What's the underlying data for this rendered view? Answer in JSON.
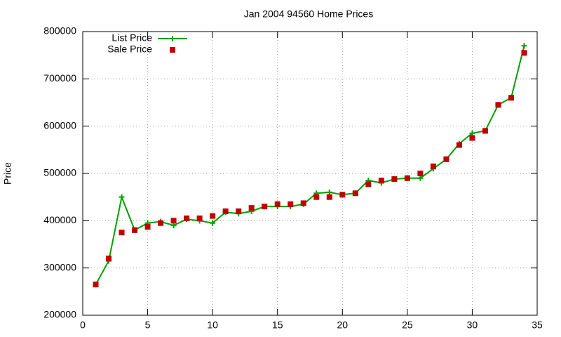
{
  "chart_data": {
    "type": "line",
    "title": "Jan 2004 94560 Home Prices",
    "y_label": "Price",
    "x": [
      1,
      2,
      3,
      4,
      5,
      6,
      7,
      8,
      9,
      10,
      11,
      12,
      13,
      14,
      15,
      16,
      17,
      18,
      19,
      20,
      21,
      22,
      23,
      24,
      25,
      26,
      27,
      28,
      29,
      30,
      31,
      32,
      33,
      34
    ],
    "series": [
      {
        "name": "List Price",
        "color": "#00a000",
        "style": "linespoints",
        "marker": "plus",
        "values": [
          265000,
          315000,
          450000,
          380000,
          395000,
          398000,
          390000,
          403000,
          400000,
          395000,
          418000,
          415000,
          420000,
          430000,
          430000,
          430000,
          435000,
          458000,
          460000,
          455000,
          458000,
          485000,
          480000,
          488000,
          490000,
          490000,
          510000,
          530000,
          563000,
          585000,
          590000,
          645000,
          660000,
          770000
        ]
      },
      {
        "name": "Sale Price",
        "color": "#c00000",
        "style": "points",
        "marker": "square",
        "values": [
          265000,
          320000,
          375000,
          380000,
          387000,
          395000,
          400000,
          405000,
          405000,
          410000,
          420000,
          420000,
          427000,
          430000,
          435000,
          435000,
          437000,
          450000,
          450000,
          455000,
          458000,
          477000,
          485000,
          488000,
          490000,
          500000,
          515000,
          530000,
          560000,
          575000,
          590000,
          645000,
          660000,
          755000
        ]
      }
    ],
    "xlim": [
      0,
      35
    ],
    "xticks": [
      0,
      5,
      10,
      15,
      20,
      25,
      30,
      35
    ],
    "ylim": [
      200000,
      800000
    ],
    "yticks": [
      200000,
      300000,
      400000,
      500000,
      600000,
      700000,
      800000
    ],
    "grid": true,
    "legend": "top-left"
  }
}
